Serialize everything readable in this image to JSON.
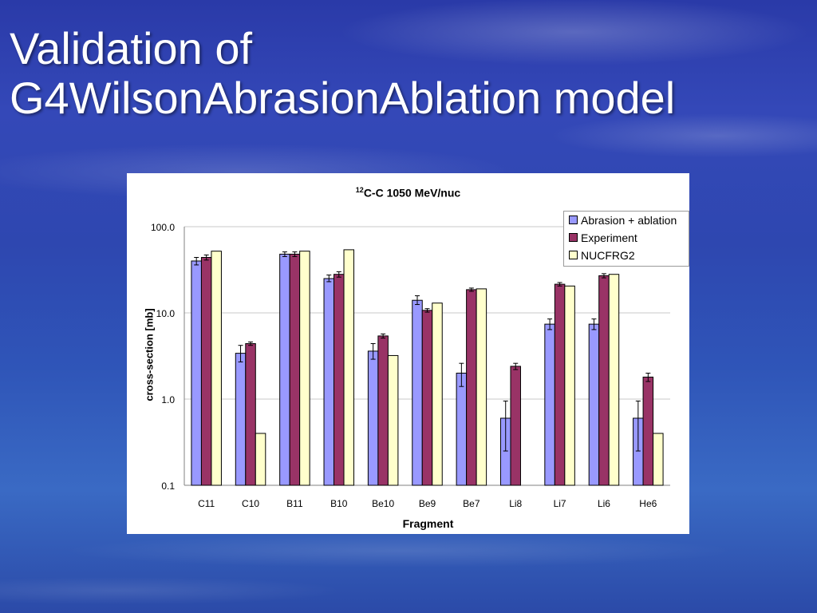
{
  "slide": {
    "title_line1": "Validation of",
    "title_line2": "G4WilsonAbrasionAblation model"
  },
  "chart_data": {
    "type": "bar",
    "title_sup": "12",
    "title": "C-C 1050 MeV/nuc",
    "xlabel": "Fragment",
    "ylabel": "cross-section [mb]",
    "yscale": "log",
    "ylim": [
      0.1,
      100
    ],
    "yticks": [
      "0.1",
      "1.0",
      "10.0",
      "100.0"
    ],
    "legend_position": "top-right",
    "categories": [
      "C11",
      "C10",
      "B11",
      "B10",
      "Be10",
      "Be9",
      "Be7",
      "Li8",
      "Li7",
      "Li6",
      "He6"
    ],
    "series": [
      {
        "name": "Abrasion + ablation",
        "color": "#9999ff",
        "values": [
          40,
          3.4,
          48,
          25,
          3.6,
          14,
          2.0,
          0.6,
          7.4,
          7.4,
          0.6
        ],
        "err_low": [
          36,
          2.7,
          45,
          23,
          2.9,
          12.5,
          1.4,
          0.25,
          6.4,
          6.4,
          0.25
        ],
        "err_high": [
          44,
          4.2,
          51,
          27.5,
          4.4,
          15.8,
          2.6,
          0.95,
          8.5,
          8.5,
          0.95
        ]
      },
      {
        "name": "Experiment",
        "color": "#993366",
        "values": [
          44,
          4.4,
          48,
          28,
          5.4,
          10.7,
          18.6,
          2.4,
          21.5,
          27,
          1.8
        ],
        "err_low": [
          41,
          4.2,
          45,
          26,
          5.1,
          10.2,
          17.8,
          2.2,
          20.5,
          25.5,
          1.6
        ],
        "err_high": [
          47,
          4.6,
          51,
          30,
          5.7,
          11.2,
          19.4,
          2.6,
          22.5,
          28.5,
          2.0
        ]
      },
      {
        "name": "NUCFRG2",
        "color": "#ffffcc",
        "values": [
          52,
          0.4,
          52,
          54,
          3.2,
          13,
          19,
          null,
          20.5,
          28,
          0.4
        ]
      }
    ]
  }
}
